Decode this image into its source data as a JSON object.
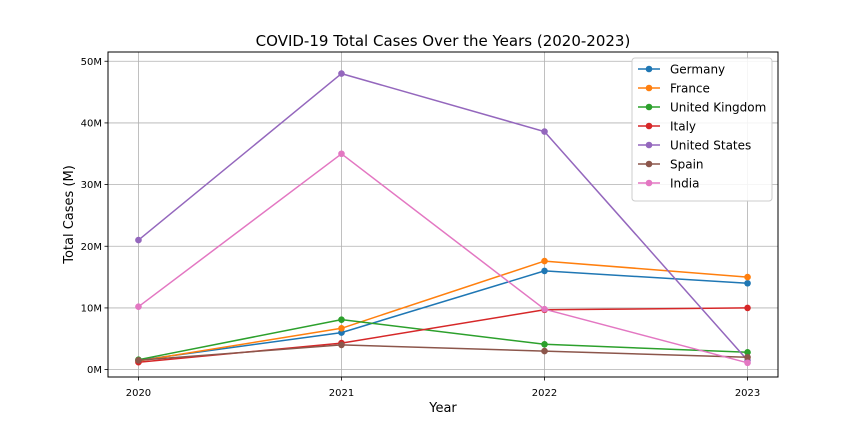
{
  "chart_data": {
    "type": "line",
    "title": "COVID-19 Total Cases Over the Years (2020-2023)",
    "xlabel": "Year",
    "ylabel": "Total Cases (M)",
    "x": [
      2020,
      2021,
      2022,
      2023
    ],
    "x_tick_labels": [
      "2020",
      "2021",
      "2022",
      "2023"
    ],
    "ylim": [
      -1.2,
      51.5
    ],
    "y_ticks": [
      0,
      10,
      20,
      30,
      40,
      50
    ],
    "y_tick_labels": [
      "0M",
      "10M",
      "20M",
      "30M",
      "40M",
      "50M"
    ],
    "grid": true,
    "legend_position": "top-right",
    "series": [
      {
        "name": "Germany",
        "color": "#1f77b4",
        "values": [
          1.5,
          6.0,
          16.0,
          14.0
        ]
      },
      {
        "name": "France",
        "color": "#ff7f0e",
        "values": [
          1.4,
          6.7,
          17.6,
          15.0
        ]
      },
      {
        "name": "United Kingdom",
        "color": "#2ca02c",
        "values": [
          1.6,
          8.1,
          4.1,
          2.8
        ]
      },
      {
        "name": "Italy",
        "color": "#d62728",
        "values": [
          1.2,
          4.3,
          9.7,
          10.0
        ]
      },
      {
        "name": "United States",
        "color": "#9467bd",
        "values": [
          21.0,
          48.0,
          38.6,
          1.5
        ]
      },
      {
        "name": "Spain",
        "color": "#8c564b",
        "values": [
          1.5,
          4.0,
          3.0,
          2.0
        ]
      },
      {
        "name": "India",
        "color": "#e377c2",
        "values": [
          10.2,
          35.0,
          9.8,
          1.1
        ]
      }
    ]
  }
}
